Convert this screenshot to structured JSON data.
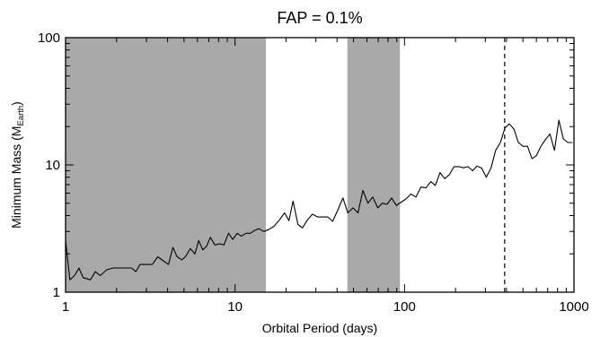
{
  "chart_data": {
    "type": "line",
    "title": "FAP = 0.1%",
    "xlabel": "Orbital Period (days)",
    "ylabel_main": "Minimum Mass (M",
    "ylabel_sub": "Earth",
    "ylabel_close": ")",
    "x_scale": "log",
    "y_scale": "log",
    "xlim": [
      1,
      1000
    ],
    "ylim": [
      1,
      100
    ],
    "x_ticks": [
      {
        "value": 1,
        "label": "1"
      },
      {
        "value": 10,
        "label": "10"
      },
      {
        "value": 100,
        "label": "100"
      },
      {
        "value": 1000,
        "label": "1000"
      }
    ],
    "y_ticks": [
      {
        "value": 1,
        "label": "1"
      },
      {
        "value": 10,
        "label": "10"
      },
      {
        "value": 100,
        "label": "100"
      }
    ],
    "grid": false,
    "shaded_regions": [
      {
        "x_start": 1,
        "x_end": 15.2,
        "color": "#a9a9a9"
      },
      {
        "x_start": 46,
        "x_end": 94,
        "color": "#a9a9a9"
      }
    ],
    "vertical_line": {
      "x": 390,
      "style": "dashed"
    },
    "series": [
      {
        "color": "#000000",
        "points": [
          [
            1.0,
            2.55
          ],
          [
            1.06,
            1.25
          ],
          [
            1.13,
            1.35
          ],
          [
            1.2,
            1.55
          ],
          [
            1.27,
            1.3
          ],
          [
            1.4,
            1.25
          ],
          [
            1.5,
            1.45
          ],
          [
            1.6,
            1.35
          ],
          [
            1.75,
            1.5
          ],
          [
            1.9,
            1.55
          ],
          [
            2.05,
            1.55
          ],
          [
            2.25,
            1.55
          ],
          [
            2.45,
            1.55
          ],
          [
            2.6,
            1.45
          ],
          [
            2.75,
            1.65
          ],
          [
            3.0,
            1.65
          ],
          [
            3.25,
            1.65
          ],
          [
            3.5,
            1.9
          ],
          [
            3.8,
            1.75
          ],
          [
            4.05,
            1.65
          ],
          [
            4.3,
            2.25
          ],
          [
            4.55,
            1.9
          ],
          [
            4.85,
            1.8
          ],
          [
            5.1,
            1.9
          ],
          [
            5.45,
            2.2
          ],
          [
            5.8,
            2.0
          ],
          [
            6.1,
            2.55
          ],
          [
            6.45,
            2.15
          ],
          [
            6.8,
            2.3
          ],
          [
            7.15,
            2.7
          ],
          [
            7.6,
            2.35
          ],
          [
            8.1,
            2.4
          ],
          [
            8.6,
            2.35
          ],
          [
            9.15,
            2.9
          ],
          [
            9.7,
            2.6
          ],
          [
            10.3,
            2.9
          ],
          [
            10.9,
            2.75
          ],
          [
            11.6,
            2.9
          ],
          [
            12.3,
            2.9
          ],
          [
            13.0,
            3.05
          ],
          [
            13.8,
            3.15
          ],
          [
            14.8,
            3.0
          ],
          [
            15.8,
            3.1
          ],
          [
            17.0,
            3.3
          ],
          [
            18.3,
            3.7
          ],
          [
            19.6,
            4.2
          ],
          [
            20.8,
            3.65
          ],
          [
            22.0,
            5.2
          ],
          [
            23.5,
            3.4
          ],
          [
            25.0,
            3.2
          ],
          [
            26.8,
            3.7
          ],
          [
            28.6,
            4.1
          ],
          [
            30.7,
            3.9
          ],
          [
            32.9,
            3.9
          ],
          [
            35.3,
            3.9
          ],
          [
            37.7,
            3.6
          ],
          [
            40.3,
            4.4
          ],
          [
            43.3,
            5.5
          ],
          [
            46.3,
            4.2
          ],
          [
            49.7,
            4.6
          ],
          [
            53.2,
            4.2
          ],
          [
            56.8,
            6.3
          ],
          [
            60.8,
            5.0
          ],
          [
            65.0,
            5.6
          ],
          [
            69.5,
            4.6
          ],
          [
            74.0,
            5.0
          ],
          [
            78.8,
            4.9
          ],
          [
            84.0,
            5.5
          ],
          [
            89.6,
            4.8
          ],
          [
            95.5,
            5.1
          ],
          [
            102,
            5.4
          ],
          [
            109,
            5.9
          ],
          [
            117,
            5.6
          ],
          [
            125,
            6.7
          ],
          [
            134,
            6.6
          ],
          [
            143,
            7.4
          ],
          [
            152,
            6.9
          ],
          [
            162,
            8.7
          ],
          [
            173,
            7.8
          ],
          [
            184,
            8.4
          ],
          [
            196,
            9.7
          ],
          [
            209,
            9.7
          ],
          [
            223,
            9.5
          ],
          [
            237,
            9.7
          ],
          [
            252,
            9.0
          ],
          [
            268,
            9.8
          ],
          [
            286,
            9.4
          ],
          [
            304,
            8.0
          ],
          [
            324,
            9.5
          ],
          [
            345,
            13.0
          ],
          [
            368,
            15.0
          ],
          [
            391,
            19.5
          ],
          [
            416,
            21.0
          ],
          [
            443,
            19.0
          ],
          [
            470,
            15.0
          ],
          [
            500,
            14.0
          ],
          [
            532,
            14.0
          ],
          [
            565,
            11.2
          ],
          [
            600,
            11.8
          ],
          [
            638,
            14.0
          ],
          [
            678,
            15.8
          ],
          [
            722,
            17.5
          ],
          [
            767,
            13.0
          ],
          [
            815,
            22.5
          ],
          [
            866,
            16.0
          ],
          [
            922,
            15.0
          ],
          [
            980,
            15.0
          ]
        ]
      }
    ]
  }
}
